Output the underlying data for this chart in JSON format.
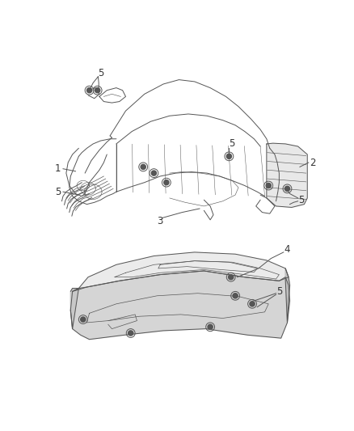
{
  "background_color": "#ffffff",
  "fig_width": 4.38,
  "fig_height": 5.33,
  "dpi": 100,
  "line_color": "#555555",
  "text_color": "#333333",
  "font_size": 8.5,
  "line_width": 0.7
}
